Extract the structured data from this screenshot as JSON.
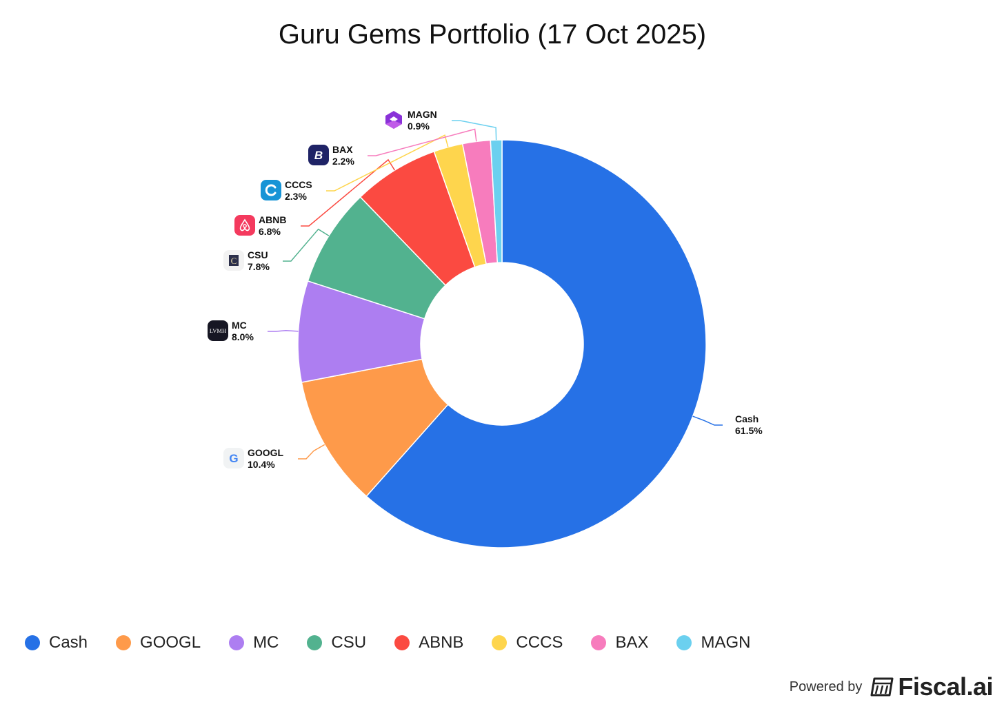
{
  "chart_data": {
    "type": "pie",
    "title": "Guru Gems Portfolio (17 Oct 2025)",
    "slices": [
      {
        "label": "Cash",
        "value": 61.5,
        "value_text": "61.5%",
        "color": "#2671e6",
        "icon": ""
      },
      {
        "label": "GOOGL",
        "value": 10.4,
        "value_text": "10.4%",
        "color": "#fe9a4a",
        "icon": "google-icon"
      },
      {
        "label": "MC",
        "value": 8.0,
        "value_text": "8.0%",
        "color": "#ad7ef1",
        "icon": "lvmh-icon"
      },
      {
        "label": "CSU",
        "value": 7.8,
        "value_text": "7.8%",
        "color": "#52b28f",
        "icon": "csu-icon"
      },
      {
        "label": "ABNB",
        "value": 6.8,
        "value_text": "6.8%",
        "color": "#fb4a41",
        "icon": "airbnb-icon"
      },
      {
        "label": "CCCS",
        "value": 2.3,
        "value_text": "2.3%",
        "color": "#fed54d",
        "icon": "cccs-icon"
      },
      {
        "label": "BAX",
        "value": 2.2,
        "value_text": "2.2%",
        "color": "#f77cbd",
        "icon": "bax-icon"
      },
      {
        "label": "MAGN",
        "value": 0.9,
        "value_text": "0.9%",
        "color": "#6bd0ef",
        "icon": "magn-icon"
      }
    ],
    "legend_position": "bottom"
  },
  "legend": {
    "items": [
      "Cash",
      "GOOGL",
      "MC",
      "CSU",
      "ABNB",
      "CCCS",
      "BAX",
      "MAGN"
    ]
  },
  "icons": {
    "lvmh_text": "LVMH",
    "google_text": "G",
    "csu_text": "C",
    "bax_text": "B"
  },
  "footer": {
    "powered_by": "Powered by",
    "brand": "Fiscal.ai"
  }
}
